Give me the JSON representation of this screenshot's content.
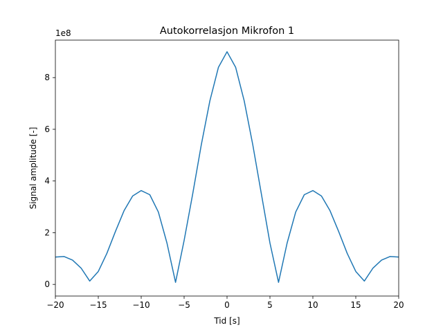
{
  "chart_data": {
    "type": "line",
    "title": "Autokorrelasjon Mikrofon 1",
    "xlabel": "Tid [s]",
    "ylabel": "Signal amplitude [-]",
    "y_offset_label": "1e8",
    "xlim": [
      -20,
      20
    ],
    "ylim": [
      -0.45,
      9.45
    ],
    "x_ticks": [
      -20,
      -15,
      -10,
      -5,
      0,
      5,
      10,
      15,
      20
    ],
    "x_tick_labels": [
      "−20",
      "−15",
      "−10",
      "−5",
      "0",
      "5",
      "10",
      "15",
      "20"
    ],
    "y_ticks": [
      0,
      2,
      4,
      6,
      8
    ],
    "y_tick_labels": [
      "0",
      "2",
      "4",
      "6",
      "8"
    ],
    "grid": false,
    "series": [
      {
        "color": "#1f77b4",
        "x": [
          -20,
          -19,
          -18,
          -17,
          -16,
          -15,
          -14,
          -13,
          -12,
          -11,
          -10,
          -9,
          -8,
          -7,
          -6,
          -5,
          -4,
          -3,
          -2,
          -1,
          0,
          1,
          2,
          3,
          4,
          5,
          6,
          7,
          8,
          9,
          10,
          11,
          12,
          13,
          14,
          15,
          16,
          17,
          18,
          19,
          20
        ],
        "y": [
          1.06,
          1.08,
          0.94,
          0.63,
          0.13,
          0.5,
          1.2,
          2.05,
          2.85,
          3.42,
          3.63,
          3.47,
          2.8,
          1.6,
          0.08,
          1.7,
          3.5,
          5.4,
          7.1,
          8.4,
          9.0,
          8.4,
          7.1,
          5.4,
          3.5,
          1.6,
          0.08,
          1.6,
          2.8,
          3.47,
          3.63,
          3.42,
          2.85,
          2.05,
          1.2,
          0.5,
          0.13,
          0.63,
          0.94,
          1.08,
          1.06
        ]
      }
    ]
  }
}
